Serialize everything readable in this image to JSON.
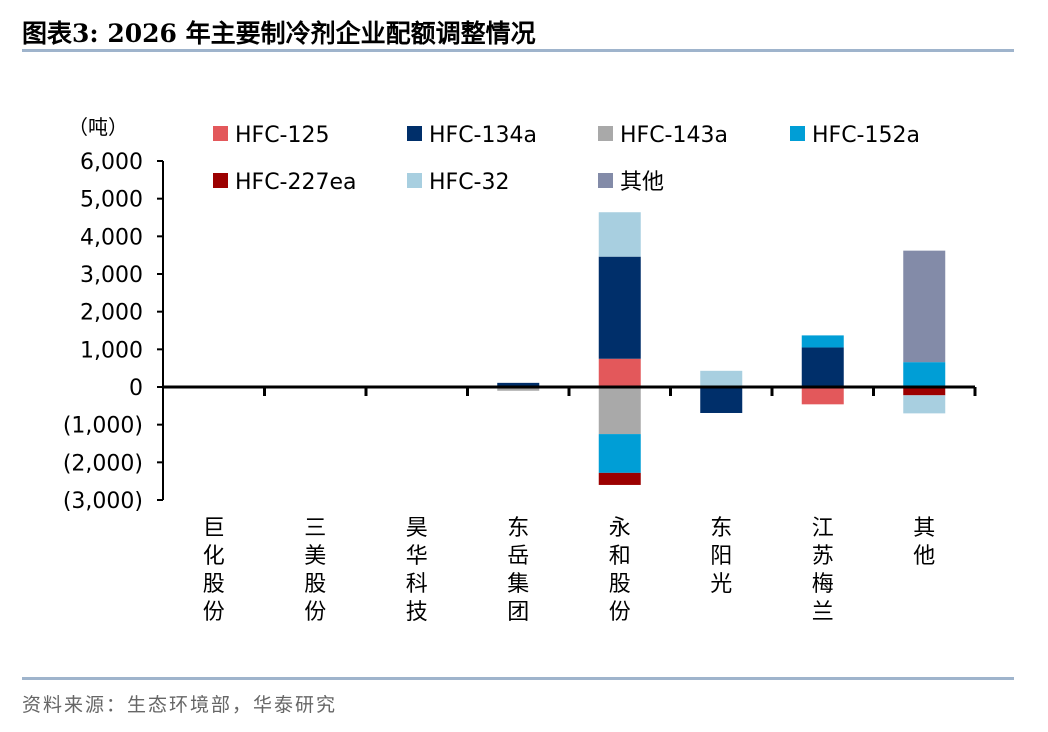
{
  "title": "图表3:   2026 年主要制冷剂企业配额调整情况",
  "source": "资料来源：生态环境部，华泰研究",
  "chart_data": {
    "type": "bar",
    "stacked": true,
    "ylabel": "（吨）",
    "ylim": [
      -3000,
      6000
    ],
    "yticks": [
      6000,
      5000,
      4000,
      3000,
      2000,
      1000,
      0,
      -1000,
      -2000,
      -3000
    ],
    "ytick_labels": [
      "6,000",
      "5,000",
      "4,000",
      "3,000",
      "2,000",
      "1,000",
      "0",
      "(1,000)",
      "(2,000)",
      "(3,000)"
    ],
    "categories": [
      "巨化股份",
      "三美股份",
      "昊华科技",
      "东岳集团",
      "永和股份",
      "东阳光",
      "江苏梅兰",
      "其他"
    ],
    "legend_position": "top",
    "series": [
      {
        "name": "HFC-125",
        "color": "#e3585b",
        "values": [
          0,
          0,
          0,
          0,
          750,
          0,
          -460,
          0
        ]
      },
      {
        "name": "HFC-134a",
        "color": "#002f6a",
        "values": [
          0,
          0,
          0,
          110,
          2710,
          -690,
          1050,
          0
        ]
      },
      {
        "name": "HFC-143a",
        "color": "#a9a9a9",
        "values": [
          0,
          0,
          0,
          -100,
          -1250,
          0,
          0,
          0
        ]
      },
      {
        "name": "HFC-152a",
        "color": "#009ed6",
        "values": [
          0,
          0,
          0,
          0,
          -1030,
          0,
          320,
          660
        ]
      },
      {
        "name": "HFC-227ea",
        "color": "#9c0000",
        "values": [
          0,
          0,
          0,
          0,
          -320,
          0,
          0,
          -220
        ]
      },
      {
        "name": "HFC-32",
        "color": "#a8cfe0",
        "values": [
          0,
          0,
          0,
          0,
          1180,
          430,
          0,
          -480
        ]
      },
      {
        "name": "其他",
        "color": "#838ba8",
        "values": [
          0,
          0,
          0,
          0,
          0,
          0,
          0,
          2960
        ]
      }
    ]
  }
}
